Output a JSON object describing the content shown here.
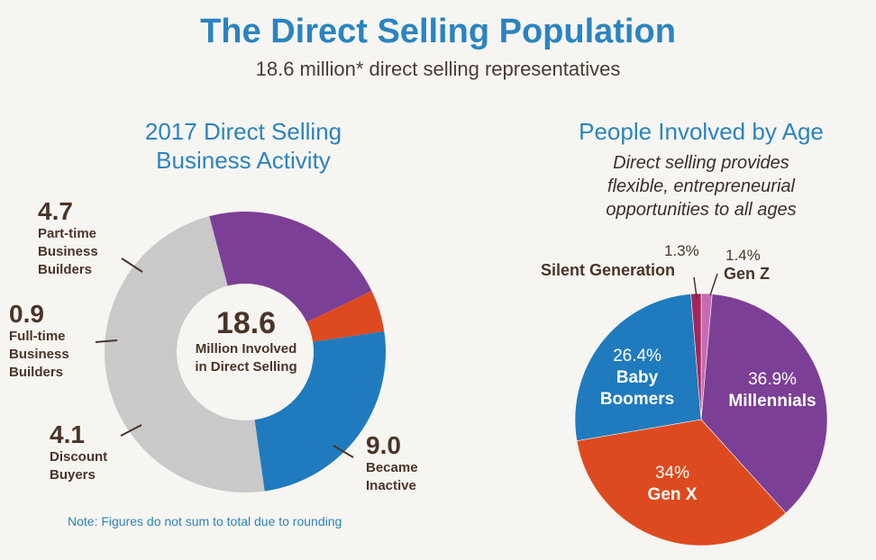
{
  "header": {
    "title": "The Direct Selling Population",
    "subtitle": "18.6 million* direct selling representatives"
  },
  "note": "Note: Figures do not sum to total due to rounding",
  "chart_data": [
    {
      "type": "pie",
      "variant": "donut",
      "title_line1": "2017 Direct Selling",
      "title_line2": "Business Activity",
      "center_value": "18.6",
      "center_label_line1": "Million Involved",
      "center_label_line2": "in Direct Selling",
      "categories": [
        "Became Inactive",
        "Discount Buyers",
        "Full-time Business Builders",
        "Part-time Business Builders"
      ],
      "values": [
        9.0,
        4.1,
        0.9,
        4.7
      ],
      "colors": [
        "#c9c9c9",
        "#7c3f96",
        "#de4a1f",
        "#1f7bbd"
      ],
      "labels": [
        {
          "value": "9.0",
          "lines": [
            "Became",
            "Inactive"
          ]
        },
        {
          "value": "4.1",
          "lines": [
            "Discount",
            "Buyers"
          ]
        },
        {
          "value": "0.9",
          "lines": [
            "Full-time",
            "Business",
            "Builders"
          ]
        },
        {
          "value": "4.7",
          "lines": [
            "Part-time",
            "Business",
            "Builders"
          ]
        }
      ]
    },
    {
      "type": "pie",
      "title": "People Involved by Age",
      "description_lines": [
        "Direct selling provides",
        "flexible, entrepreneurial",
        "opportunities to all ages"
      ],
      "categories": [
        "Gen Z",
        "Millennials",
        "Gen X",
        "Baby Boomers",
        "Silent Generation"
      ],
      "values": [
        1.4,
        36.9,
        34,
        26.4,
        1.3
      ],
      "value_labels": [
        "1.4%",
        "36.9%",
        "34%",
        "26.4%",
        "1.3%"
      ],
      "colors": [
        "#c86bb3",
        "#7c3f96",
        "#de4a1f",
        "#1f7bbd",
        "#a3245e"
      ],
      "label_lines": {
        "baby_boomers": [
          "Baby",
          "Boomers"
        ]
      }
    }
  ]
}
